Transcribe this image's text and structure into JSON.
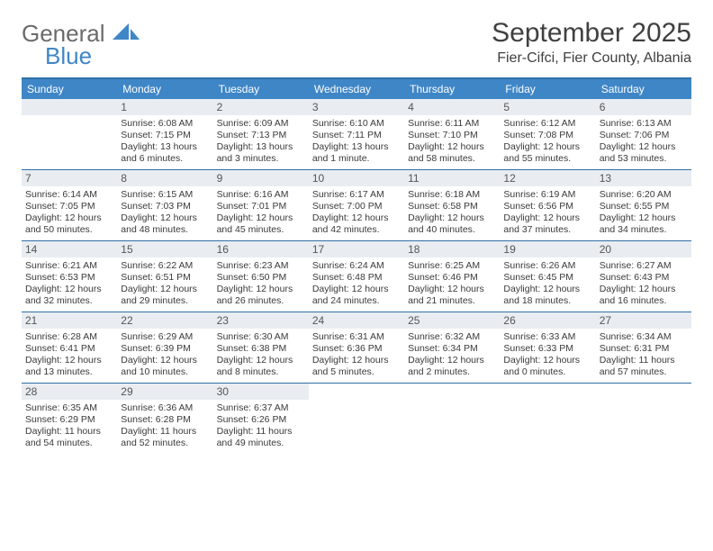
{
  "logo": {
    "word1": "General",
    "word2": "Blue"
  },
  "title": "September 2025",
  "location": "Fier-Cifci, Fier County, Albania",
  "colors": {
    "header_bg": "#3f86c7",
    "header_rule": "#2f6fa8",
    "date_bar_bg": "#e9edf1",
    "text": "#3a3a3a",
    "logo_gray": "#6b6b6b",
    "logo_blue": "#3f86c7",
    "white": "#ffffff"
  },
  "day_names": [
    "Sunday",
    "Monday",
    "Tuesday",
    "Wednesday",
    "Thursday",
    "Friday",
    "Saturday"
  ],
  "weeks": [
    [
      {
        "date": "",
        "empty": true
      },
      {
        "date": "1",
        "sunrise": "Sunrise: 6:08 AM",
        "sunset": "Sunset: 7:15 PM",
        "daylight1": "Daylight: 13 hours",
        "daylight2": "and 6 minutes."
      },
      {
        "date": "2",
        "sunrise": "Sunrise: 6:09 AM",
        "sunset": "Sunset: 7:13 PM",
        "daylight1": "Daylight: 13 hours",
        "daylight2": "and 3 minutes."
      },
      {
        "date": "3",
        "sunrise": "Sunrise: 6:10 AM",
        "sunset": "Sunset: 7:11 PM",
        "daylight1": "Daylight: 13 hours",
        "daylight2": "and 1 minute."
      },
      {
        "date": "4",
        "sunrise": "Sunrise: 6:11 AM",
        "sunset": "Sunset: 7:10 PM",
        "daylight1": "Daylight: 12 hours",
        "daylight2": "and 58 minutes."
      },
      {
        "date": "5",
        "sunrise": "Sunrise: 6:12 AM",
        "sunset": "Sunset: 7:08 PM",
        "daylight1": "Daylight: 12 hours",
        "daylight2": "and 55 minutes."
      },
      {
        "date": "6",
        "sunrise": "Sunrise: 6:13 AM",
        "sunset": "Sunset: 7:06 PM",
        "daylight1": "Daylight: 12 hours",
        "daylight2": "and 53 minutes."
      }
    ],
    [
      {
        "date": "7",
        "sunrise": "Sunrise: 6:14 AM",
        "sunset": "Sunset: 7:05 PM",
        "daylight1": "Daylight: 12 hours",
        "daylight2": "and 50 minutes."
      },
      {
        "date": "8",
        "sunrise": "Sunrise: 6:15 AM",
        "sunset": "Sunset: 7:03 PM",
        "daylight1": "Daylight: 12 hours",
        "daylight2": "and 48 minutes."
      },
      {
        "date": "9",
        "sunrise": "Sunrise: 6:16 AM",
        "sunset": "Sunset: 7:01 PM",
        "daylight1": "Daylight: 12 hours",
        "daylight2": "and 45 minutes."
      },
      {
        "date": "10",
        "sunrise": "Sunrise: 6:17 AM",
        "sunset": "Sunset: 7:00 PM",
        "daylight1": "Daylight: 12 hours",
        "daylight2": "and 42 minutes."
      },
      {
        "date": "11",
        "sunrise": "Sunrise: 6:18 AM",
        "sunset": "Sunset: 6:58 PM",
        "daylight1": "Daylight: 12 hours",
        "daylight2": "and 40 minutes."
      },
      {
        "date": "12",
        "sunrise": "Sunrise: 6:19 AM",
        "sunset": "Sunset: 6:56 PM",
        "daylight1": "Daylight: 12 hours",
        "daylight2": "and 37 minutes."
      },
      {
        "date": "13",
        "sunrise": "Sunrise: 6:20 AM",
        "sunset": "Sunset: 6:55 PM",
        "daylight1": "Daylight: 12 hours",
        "daylight2": "and 34 minutes."
      }
    ],
    [
      {
        "date": "14",
        "sunrise": "Sunrise: 6:21 AM",
        "sunset": "Sunset: 6:53 PM",
        "daylight1": "Daylight: 12 hours",
        "daylight2": "and 32 minutes."
      },
      {
        "date": "15",
        "sunrise": "Sunrise: 6:22 AM",
        "sunset": "Sunset: 6:51 PM",
        "daylight1": "Daylight: 12 hours",
        "daylight2": "and 29 minutes."
      },
      {
        "date": "16",
        "sunrise": "Sunrise: 6:23 AM",
        "sunset": "Sunset: 6:50 PM",
        "daylight1": "Daylight: 12 hours",
        "daylight2": "and 26 minutes."
      },
      {
        "date": "17",
        "sunrise": "Sunrise: 6:24 AM",
        "sunset": "Sunset: 6:48 PM",
        "daylight1": "Daylight: 12 hours",
        "daylight2": "and 24 minutes."
      },
      {
        "date": "18",
        "sunrise": "Sunrise: 6:25 AM",
        "sunset": "Sunset: 6:46 PM",
        "daylight1": "Daylight: 12 hours",
        "daylight2": "and 21 minutes."
      },
      {
        "date": "19",
        "sunrise": "Sunrise: 6:26 AM",
        "sunset": "Sunset: 6:45 PM",
        "daylight1": "Daylight: 12 hours",
        "daylight2": "and 18 minutes."
      },
      {
        "date": "20",
        "sunrise": "Sunrise: 6:27 AM",
        "sunset": "Sunset: 6:43 PM",
        "daylight1": "Daylight: 12 hours",
        "daylight2": "and 16 minutes."
      }
    ],
    [
      {
        "date": "21",
        "sunrise": "Sunrise: 6:28 AM",
        "sunset": "Sunset: 6:41 PM",
        "daylight1": "Daylight: 12 hours",
        "daylight2": "and 13 minutes."
      },
      {
        "date": "22",
        "sunrise": "Sunrise: 6:29 AM",
        "sunset": "Sunset: 6:39 PM",
        "daylight1": "Daylight: 12 hours",
        "daylight2": "and 10 minutes."
      },
      {
        "date": "23",
        "sunrise": "Sunrise: 6:30 AM",
        "sunset": "Sunset: 6:38 PM",
        "daylight1": "Daylight: 12 hours",
        "daylight2": "and 8 minutes."
      },
      {
        "date": "24",
        "sunrise": "Sunrise: 6:31 AM",
        "sunset": "Sunset: 6:36 PM",
        "daylight1": "Daylight: 12 hours",
        "daylight2": "and 5 minutes."
      },
      {
        "date": "25",
        "sunrise": "Sunrise: 6:32 AM",
        "sunset": "Sunset: 6:34 PM",
        "daylight1": "Daylight: 12 hours",
        "daylight2": "and 2 minutes."
      },
      {
        "date": "26",
        "sunrise": "Sunrise: 6:33 AM",
        "sunset": "Sunset: 6:33 PM",
        "daylight1": "Daylight: 12 hours",
        "daylight2": "and 0 minutes."
      },
      {
        "date": "27",
        "sunrise": "Sunrise: 6:34 AM",
        "sunset": "Sunset: 6:31 PM",
        "daylight1": "Daylight: 11 hours",
        "daylight2": "and 57 minutes."
      }
    ],
    [
      {
        "date": "28",
        "sunrise": "Sunrise: 6:35 AM",
        "sunset": "Sunset: 6:29 PM",
        "daylight1": "Daylight: 11 hours",
        "daylight2": "and 54 minutes."
      },
      {
        "date": "29",
        "sunrise": "Sunrise: 6:36 AM",
        "sunset": "Sunset: 6:28 PM",
        "daylight1": "Daylight: 11 hours",
        "daylight2": "and 52 minutes."
      },
      {
        "date": "30",
        "sunrise": "Sunrise: 6:37 AM",
        "sunset": "Sunset: 6:26 PM",
        "daylight1": "Daylight: 11 hours",
        "daylight2": "and 49 minutes."
      },
      {
        "date": "",
        "empty": true
      },
      {
        "date": "",
        "empty": true
      },
      {
        "date": "",
        "empty": true
      },
      {
        "date": "",
        "empty": true
      }
    ]
  ]
}
